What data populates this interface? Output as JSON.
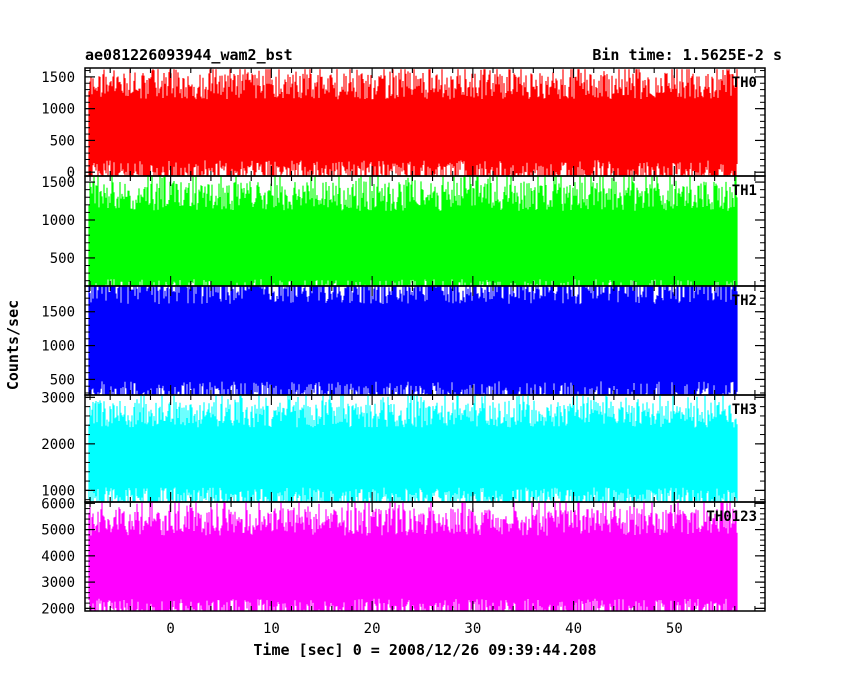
{
  "chart_data": {
    "type": "line",
    "title_left": "ae081226093944_wam2_bst",
    "title_right": "Bin time: 1.5625E-2 s",
    "xlabel": "Time [sec] 0 = 2008/12/26 09:39:44.208",
    "ylabel": "Counts/sec",
    "xlim": [
      -8.5,
      59
    ],
    "data_xrange": [
      -8.1,
      56.2
    ],
    "xticks": [
      0,
      10,
      20,
      30,
      40,
      50
    ],
    "xtick_labels": [
      "0",
      "10",
      "20",
      "30",
      "40",
      "50"
    ],
    "xtick_minor_step": 2,
    "grid": false,
    "panels": [
      {
        "name": "TH0",
        "color": "#ff0000",
        "ylim": [
          -60,
          1640
        ],
        "yticks": [
          0,
          500,
          1000,
          1500
        ],
        "ytick_labels": [
          "0",
          "500",
          "1000",
          "1500"
        ],
        "mean": 700,
        "spread": 320,
        "typical_high": 1350,
        "typical_low": 150,
        "max": 1620
      },
      {
        "name": "TH1",
        "color": "#00ff00",
        "ylim": [
          130,
          1580
        ],
        "yticks": [
          500,
          1000,
          1500
        ],
        "ytick_labels": [
          "500",
          "1000",
          "1500"
        ],
        "mean": 700,
        "spread": 300,
        "typical_high": 1300,
        "typical_low": 150,
        "max": 1580
      },
      {
        "name": "TH2",
        "color": "#0000ff",
        "ylim": [
          270,
          1880
        ],
        "yticks": [
          500,
          1000,
          1500
        ],
        "ytick_labels": [
          "500",
          "1000",
          "1500"
        ],
        "mean": 1080,
        "spread": 380,
        "typical_high": 1800,
        "typical_low": 330,
        "max": 1880
      },
      {
        "name": "TH3",
        "color": "#00ffff",
        "ylim": [
          750,
          3050
        ],
        "yticks": [
          1000,
          2000,
          3000
        ],
        "ytick_labels": [
          "1000",
          "2000",
          "3000"
        ],
        "mean": 1750,
        "spread": 430,
        "typical_high": 2750,
        "typical_low": 850,
        "max": 3050
      },
      {
        "name": "TH0123",
        "color": "#ff00ff",
        "ylim": [
          1900,
          6050
        ],
        "yticks": [
          2000,
          3000,
          4000,
          5000,
          6000
        ],
        "ytick_labels": [
          "2000",
          "3000",
          "4000",
          "5000",
          "6000"
        ],
        "mean": 3650,
        "spread": 800,
        "typical_high": 5500,
        "typical_low": 2100,
        "max": 6050
      }
    ]
  }
}
